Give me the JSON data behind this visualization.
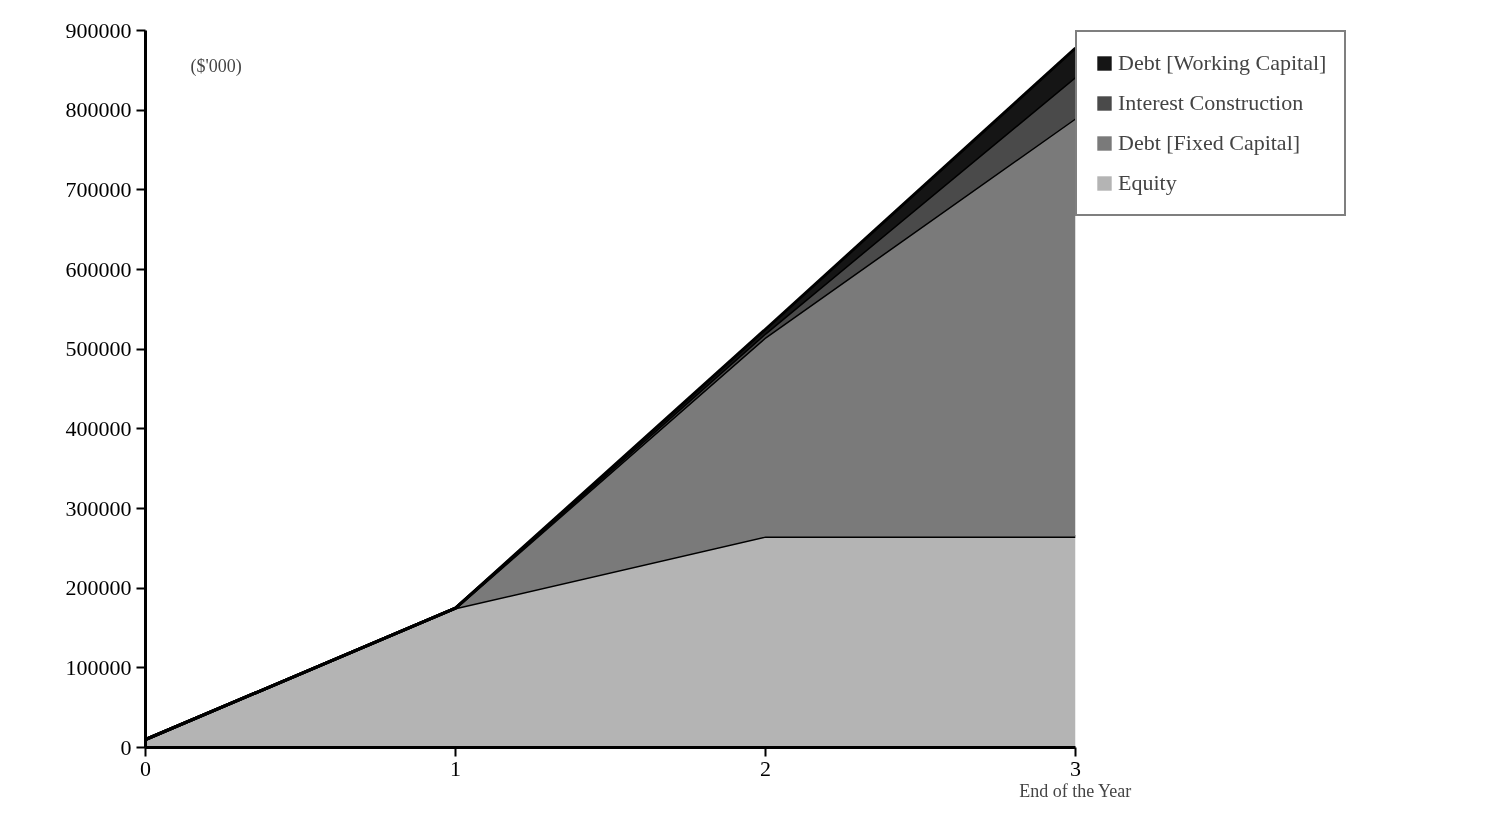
{
  "chart_data": {
    "type": "area",
    "stacked": true,
    "xlabel": "End of the Year",
    "ylabel": "($'000)",
    "x": [
      0,
      1,
      2,
      3
    ],
    "series": [
      {
        "name": "Equity",
        "color": "#b4b4b4",
        "values": [
          10000,
          175000,
          265000,
          265000
        ]
      },
      {
        "name": "Debt [Fixed Capital]",
        "color": "#7a7a7a",
        "values": [
          0,
          0,
          250000,
          525000
        ]
      },
      {
        "name": "Interest Construction",
        "color": "#4a4a4a",
        "values": [
          0,
          0,
          5000,
          52000
        ]
      },
      {
        "name": "Debt [Working Capital]",
        "color": "#151515",
        "values": [
          0,
          0,
          5000,
          36000
        ]
      }
    ],
    "xlim": [
      0,
      3
    ],
    "xticks": [
      0,
      1,
      2,
      3
    ],
    "ylim": [
      0,
      900000
    ],
    "yticks": [
      0,
      100000,
      200000,
      300000,
      400000,
      500000,
      600000,
      700000,
      800000,
      900000
    ],
    "grid": false,
    "legend": "right"
  }
}
